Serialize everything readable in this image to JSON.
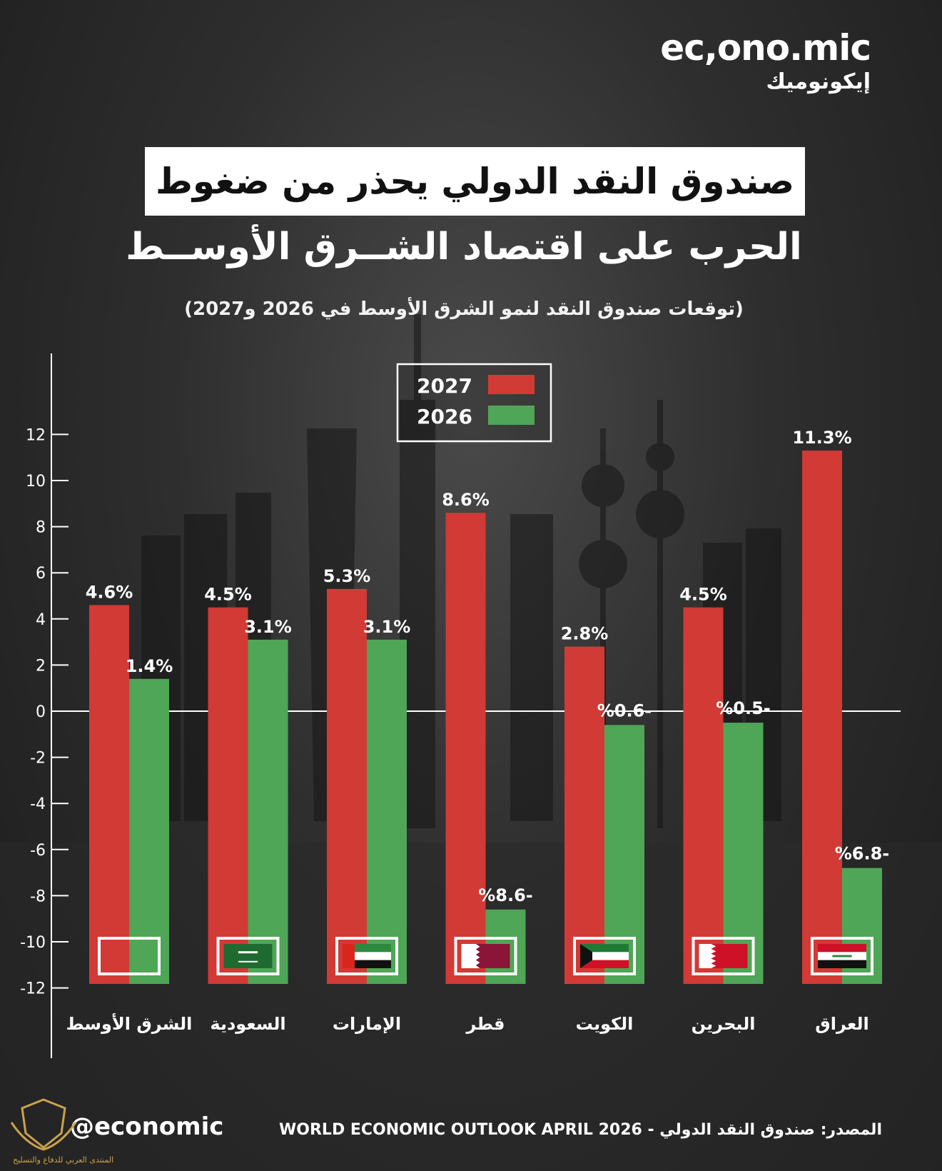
{
  "brand": {
    "name_en": "ec,ono.mic",
    "name_ar": "إيكونوميك"
  },
  "title": {
    "line1": "صندوق النقد الدولي يحذر من ضغوط",
    "line2": "الحرب على اقتصاد الشــرق الأوســط"
  },
  "subtitle": "(توقعات صندوق النقد لنمو الشرق الأوسط في 2026 و2027)",
  "colors": {
    "y2027": "#d23a36",
    "y2026": "#4fa656",
    "axis": "#ffffff"
  },
  "chart_data": {
    "type": "bar",
    "categories": [
      "الشرق الأوسط",
      "السعودية",
      "الإمارات",
      "قطر",
      "الكويت",
      "البحرين",
      "العراق"
    ],
    "flags": [
      "none",
      "saudi-arabia",
      "uae",
      "qatar",
      "kuwait",
      "bahrain",
      "iraq"
    ],
    "series": [
      {
        "name": "2027",
        "values": [
          4.6,
          4.5,
          5.3,
          8.6,
          2.8,
          4.5,
          11.3
        ],
        "labels": [
          "4.6%",
          "4.5%",
          "5.3%",
          "8.6%",
          "2.8%",
          "4.5%",
          "11.3%"
        ]
      },
      {
        "name": "2026",
        "values": [
          1.4,
          3.1,
          3.1,
          -8.6,
          -0.6,
          -0.5,
          -6.8
        ],
        "labels": [
          "1.4%",
          "3.1%",
          "3.1%",
          "%8.6-",
          "%0.6-",
          "%0.5-",
          "%6.8-"
        ]
      }
    ],
    "yticks": [
      "12",
      "10",
      "8",
      "6",
      "4",
      "2",
      "0",
      "-2",
      "-4",
      "-6",
      "-8",
      "-10",
      "-12"
    ],
    "ylim": [
      -12,
      12
    ],
    "legend": [
      "2027",
      "2026"
    ],
    "legend_position": "top-center",
    "bars_extend_to_bottom": true
  },
  "footer": {
    "handle": "@economic",
    "source": "المصدر: صندوق النقد الدولي - WORLD ECONOMIC OUTLOOK APRIL 2026",
    "watermark": "المنتدى العربي للدفاع والتسليح"
  }
}
